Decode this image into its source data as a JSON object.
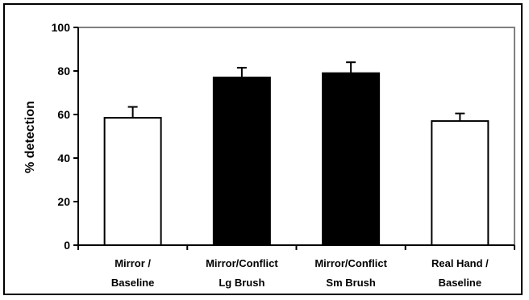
{
  "chart_data": {
    "type": "bar",
    "title": "",
    "xlabel": "",
    "ylabel": "% detection",
    "ylim": [
      0,
      100
    ],
    "yticks": [
      0,
      20,
      40,
      60,
      80,
      100
    ],
    "grid": false,
    "categories": [
      [
        "Mirror /",
        "Baseline"
      ],
      [
        "Mirror/Conflict",
        "Lg Brush"
      ],
      [
        "Mirror/Conflict",
        "Sm Brush"
      ],
      [
        "Real Hand /",
        "Baseline"
      ]
    ],
    "values": [
      58.5,
      77,
      79,
      57
    ],
    "error_upper": [
      5,
      4.5,
      5,
      3.5
    ],
    "bar_fills": [
      "#ffffff",
      "#000000",
      "#000000",
      "#ffffff"
    ],
    "colors": {
      "plot_border": "#808080",
      "bar_stroke": "#000000",
      "axis": "#000000"
    }
  }
}
